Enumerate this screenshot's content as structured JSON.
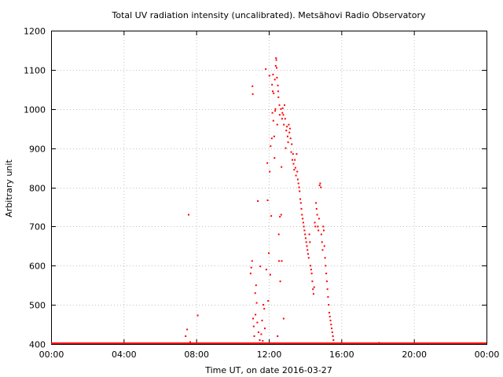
{
  "chart_data": {
    "type": "scatter",
    "title": "Total UV radiation intensity (uncalibrated). Metsähovi Radio Observatory",
    "xlabel": "Time UT, on date 2016-03-27",
    "ylabel": "Arbitrary unit",
    "xlim": [
      "00:00",
      "24:00"
    ],
    "ylim": [
      400,
      1200
    ],
    "x_ticks": [
      "00:00",
      "04:00",
      "08:00",
      "12:00",
      "16:00",
      "20:00",
      "00:00"
    ],
    "y_ticks": [
      400,
      500,
      600,
      700,
      800,
      900,
      1000,
      1100,
      1200
    ],
    "grid": true,
    "colors": {
      "points": "#ff0000",
      "grid": "#c0c0c0",
      "axes": "#000000"
    },
    "baseline": {
      "value": 400,
      "from": "00:00",
      "to": "24:00"
    },
    "series": [
      {
        "points": [
          [
            "07:25",
            420
          ],
          [
            "07:30",
            437
          ],
          [
            "07:35",
            730
          ],
          [
            "07:40",
            405
          ],
          [
            "08:05",
            473
          ],
          [
            "11:00",
            580
          ],
          [
            "11:02",
            595
          ],
          [
            "11:05",
            612
          ],
          [
            "11:06",
            1058
          ],
          [
            "11:07",
            1038
          ],
          [
            "11:08",
            465
          ],
          [
            "11:10",
            445
          ],
          [
            "11:12",
            420
          ],
          [
            "11:15",
            530
          ],
          [
            "11:16",
            475
          ],
          [
            "11:18",
            550
          ],
          [
            "11:20",
            505
          ],
          [
            "11:22",
            455
          ],
          [
            "11:24",
            765
          ],
          [
            "11:26",
            430
          ],
          [
            "11:30",
            410
          ],
          [
            "11:32",
            598
          ],
          [
            "11:35",
            425
          ],
          [
            "11:38",
            460
          ],
          [
            "11:40",
            408
          ],
          [
            "11:42",
            500
          ],
          [
            "11:45",
            490
          ],
          [
            "11:47",
            440
          ],
          [
            "11:50",
            1102
          ],
          [
            "11:52",
            590
          ],
          [
            "11:55",
            862
          ],
          [
            "11:56",
            767
          ],
          [
            "11:58",
            510
          ],
          [
            "12:00",
            632
          ],
          [
            "12:02",
            1085
          ],
          [
            "12:03",
            840
          ],
          [
            "12:05",
            577
          ],
          [
            "12:06",
            905
          ],
          [
            "12:08",
            727
          ],
          [
            "12:10",
            925
          ],
          [
            "12:11",
            1062
          ],
          [
            "12:12",
            990
          ],
          [
            "12:13",
            1045
          ],
          [
            "12:14",
            1088
          ],
          [
            "12:15",
            970
          ],
          [
            "12:16",
            1040
          ],
          [
            "12:18",
            930
          ],
          [
            "12:19",
            875
          ],
          [
            "12:20",
            1075
          ],
          [
            "12:21",
            995
          ],
          [
            "12:22",
            1000
          ],
          [
            "12:23",
            1110
          ],
          [
            "12:24",
            1130
          ],
          [
            "12:25",
            1125
          ],
          [
            "12:26",
            1105
          ],
          [
            "12:27",
            1080
          ],
          [
            "12:28",
            960
          ],
          [
            "12:29",
            420
          ],
          [
            "12:30",
            1060
          ],
          [
            "12:31",
            1045
          ],
          [
            "12:32",
            1030
          ],
          [
            "12:33",
            680
          ],
          [
            "12:34",
            612
          ],
          [
            "12:35",
            1010
          ],
          [
            "12:36",
            985
          ],
          [
            "12:37",
            725
          ],
          [
            "12:38",
            560
          ],
          [
            "12:40",
            1000
          ],
          [
            "12:41",
            730
          ],
          [
            "12:42",
            852
          ],
          [
            "12:43",
            612
          ],
          [
            "12:44",
            975
          ],
          [
            "12:45",
            990
          ],
          [
            "12:46",
            1002
          ],
          [
            "12:48",
            985
          ],
          [
            "12:49",
            465
          ],
          [
            "12:50",
            960
          ],
          [
            "12:52",
            1010
          ],
          [
            "12:54",
            975
          ],
          [
            "12:56",
            900
          ],
          [
            "12:58",
            945
          ],
          [
            "13:00",
            955
          ],
          [
            "13:02",
            930
          ],
          [
            "13:04",
            915
          ],
          [
            "13:06",
            960
          ],
          [
            "13:08",
            940
          ],
          [
            "13:10",
            950
          ],
          [
            "13:12",
            925
          ],
          [
            "13:14",
            890
          ],
          [
            "13:16",
            910
          ],
          [
            "13:18",
            870
          ],
          [
            "13:20",
            885
          ],
          [
            "13:22",
            860
          ],
          [
            "13:24",
            845
          ],
          [
            "13:26",
            870
          ],
          [
            "13:28",
            850
          ],
          [
            "13:30",
            830
          ],
          [
            "13:32",
            885
          ],
          [
            "13:34",
            840
          ],
          [
            "13:36",
            820
          ],
          [
            "13:38",
            810
          ],
          [
            "13:40",
            800
          ],
          [
            "13:42",
            790
          ],
          [
            "13:44",
            770
          ],
          [
            "13:46",
            760
          ],
          [
            "13:48",
            745
          ],
          [
            "13:50",
            730
          ],
          [
            "13:52",
            720
          ],
          [
            "13:54",
            710
          ],
          [
            "13:56",
            700
          ],
          [
            "13:58",
            690
          ],
          [
            "14:00",
            680
          ],
          [
            "14:02",
            670
          ],
          [
            "14:04",
            660
          ],
          [
            "14:06",
            650
          ],
          [
            "14:08",
            640
          ],
          [
            "14:10",
            630
          ],
          [
            "14:12",
            620
          ],
          [
            "14:14",
            680
          ],
          [
            "14:16",
            660
          ],
          [
            "14:18",
            600
          ],
          [
            "14:20",
            590
          ],
          [
            "14:22",
            580
          ],
          [
            "14:24",
            560
          ],
          [
            "14:26",
            540
          ],
          [
            "14:28",
            528
          ],
          [
            "14:30",
            545
          ],
          [
            "14:32",
            710
          ],
          [
            "14:34",
            700
          ],
          [
            "14:36",
            760
          ],
          [
            "14:38",
            745
          ],
          [
            "14:40",
            730
          ],
          [
            "14:42",
            700
          ],
          [
            "14:44",
            690
          ],
          [
            "14:46",
            720
          ],
          [
            "14:48",
            805
          ],
          [
            "14:50",
            810
          ],
          [
            "14:52",
            800
          ],
          [
            "14:54",
            680
          ],
          [
            "14:56",
            660
          ],
          [
            "14:58",
            640
          ],
          [
            "15:00",
            700
          ],
          [
            "15:02",
            690
          ],
          [
            "15:04",
            650
          ],
          [
            "15:06",
            620
          ],
          [
            "15:08",
            600
          ],
          [
            "15:10",
            580
          ],
          [
            "15:12",
            560
          ],
          [
            "15:14",
            540
          ],
          [
            "15:16",
            520
          ],
          [
            "15:18",
            500
          ],
          [
            "15:20",
            480
          ],
          [
            "15:22",
            470
          ],
          [
            "15:24",
            460
          ],
          [
            "15:26",
            450
          ],
          [
            "15:28",
            440
          ],
          [
            "15:30",
            430
          ],
          [
            "15:32",
            420
          ],
          [
            "15:34",
            410
          ],
          [
            "18:05",
            403
          ]
        ]
      }
    ]
  }
}
